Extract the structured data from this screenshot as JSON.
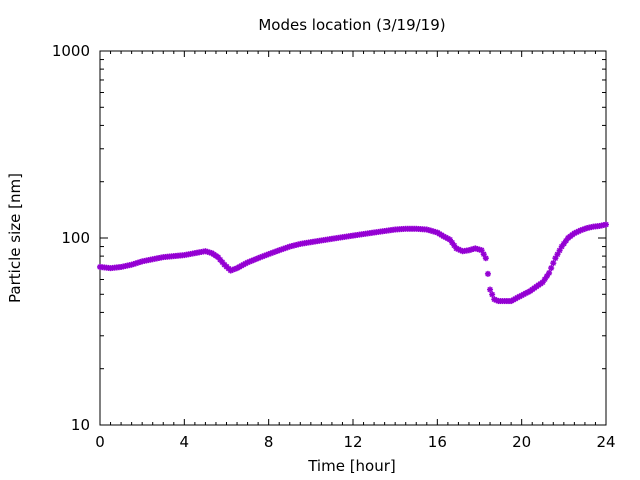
{
  "chart_data": {
    "type": "scatter",
    "title": "Modes location (3/19/19)",
    "xlabel": "Time [hour]",
    "ylabel": "Particle size [nm]",
    "xlim": [
      0,
      24
    ],
    "ylim": [
      10,
      1000
    ],
    "yscale": "log",
    "grid": false,
    "legend": "none",
    "xticks": [
      "0",
      "4",
      "8",
      "12",
      "16",
      "20",
      "24"
    ],
    "yticks": [
      "10",
      "100",
      "1000"
    ],
    "marker_color": "#9400d3",
    "series": [
      {
        "x": [
          0.0,
          0.5,
          1.0,
          1.5,
          2.0,
          2.5,
          3.0,
          3.5,
          4.0,
          4.5,
          5.0,
          5.3,
          5.6,
          5.9,
          6.2,
          6.5,
          7.0,
          7.5,
          8.0,
          8.5,
          9.0,
          9.5,
          10.0,
          10.5,
          11.0,
          11.5,
          12.0,
          12.5,
          13.0,
          13.5,
          14.0,
          14.5,
          15.0,
          15.5,
          16.0,
          16.3,
          16.6,
          16.9,
          17.2,
          17.5,
          17.8,
          18.1,
          18.3,
          18.5,
          18.7,
          18.9,
          19.2,
          19.5,
          19.8,
          20.1,
          20.4,
          20.7,
          21.0,
          21.3,
          21.6,
          21.9,
          22.2,
          22.5,
          22.8,
          23.1,
          23.4,
          23.7,
          24.0
        ],
        "y": [
          70,
          69,
          70,
          72,
          75,
          77,
          79,
          80,
          81,
          83,
          85,
          83,
          79,
          72,
          67,
          69,
          74,
          78,
          82,
          86,
          90,
          93,
          95,
          97,
          99,
          101,
          103,
          105,
          107,
          109,
          111,
          112,
          112,
          111,
          107,
          102,
          98,
          88,
          85,
          86,
          88,
          86,
          78,
          53,
          47,
          46,
          46,
          46,
          48,
          50,
          52,
          55,
          58,
          65,
          78,
          90,
          100,
          106,
          110,
          113,
          115,
          116,
          118
        ]
      }
    ]
  }
}
